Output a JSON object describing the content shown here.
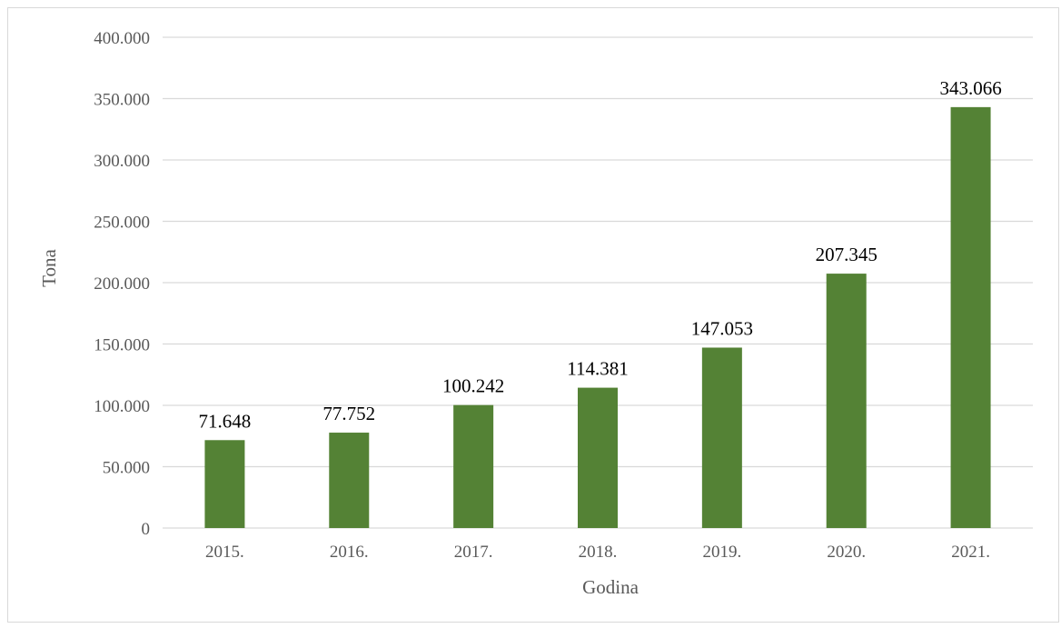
{
  "chart_data": {
    "type": "bar",
    "categories": [
      "2015.",
      "2016.",
      "2017.",
      "2018.",
      "2019.",
      "2020.",
      "2021."
    ],
    "values": [
      71648,
      77752,
      100242,
      114381,
      147053,
      207345,
      343066
    ],
    "data_labels": [
      "71.648",
      "77.752",
      "100.242",
      "114.381",
      "147.053",
      "207.345",
      "343.066"
    ],
    "title": "",
    "xlabel": "Godina",
    "ylabel": "Tona",
    "ylim": [
      0,
      400000
    ],
    "y_ticks": [
      0,
      50000,
      100000,
      150000,
      200000,
      250000,
      300000,
      350000,
      400000
    ],
    "y_tick_labels": [
      "0",
      "50.000",
      "100.000",
      "150.000",
      "200.000",
      "250.000",
      "300.000",
      "350.000",
      "400.000"
    ],
    "grid": true,
    "legend": "none",
    "bar_color": "#548235",
    "grid_color": "#d9d9d9"
  }
}
